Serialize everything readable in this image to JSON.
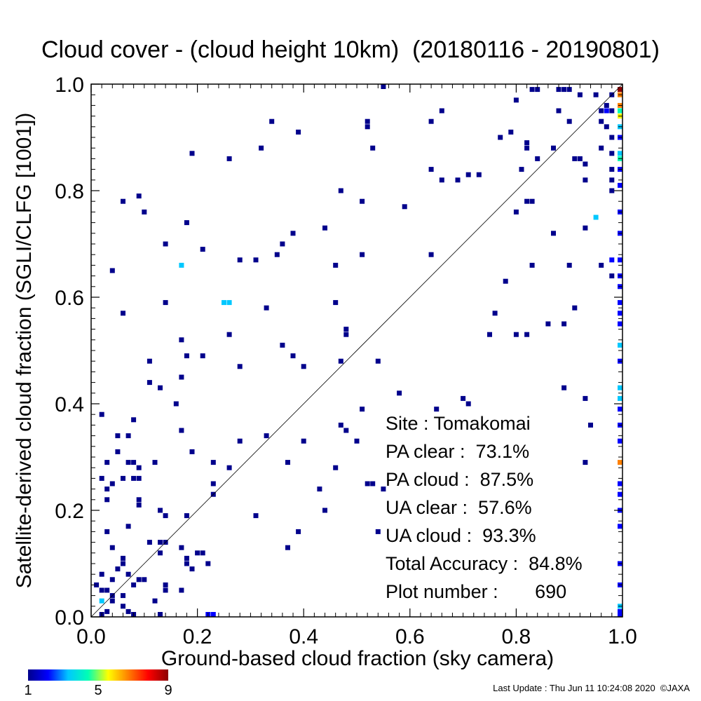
{
  "chart_data": {
    "type": "heatmap",
    "title": "Cloud cover - (cloud height 10km)  (20180116 - 20190801)",
    "xlabel": "Ground-based cloud fraction (sky camera)",
    "ylabel": "Satellite-derived cloud fraction (SGLI/CLFG [1001])",
    "xlim": [
      0,
      1
    ],
    "ylim": [
      0,
      1
    ],
    "xticks": [
      "0.0",
      "0.2",
      "0.4",
      "0.6",
      "0.8",
      "1.0"
    ],
    "yticks": [
      "0.0",
      "0.2",
      "0.4",
      "0.6",
      "0.8",
      "1.0"
    ],
    "reference_line": "y = x",
    "colorbar": {
      "min": 1,
      "max": 9,
      "ticks": [
        "1",
        "5",
        "9"
      ],
      "colors": [
        "#00008c",
        "#0000ff",
        "#00c8ff",
        "#00ffb4",
        "#ffff00",
        "#ff8000",
        "#ff0000",
        "#8c0000"
      ]
    },
    "points": [
      [
        0.55,
        1.0,
        1
      ],
      [
        0.83,
        0.99,
        1
      ],
      [
        0.84,
        0.99,
        1
      ],
      [
        0.88,
        0.99,
        1
      ],
      [
        0.89,
        0.99,
        1
      ],
      [
        0.9,
        0.99,
        1
      ],
      [
        0.92,
        0.98,
        1
      ],
      [
        0.95,
        0.98,
        1
      ],
      [
        0.98,
        0.98,
        1
      ],
      [
        1.0,
        0.99,
        9
      ],
      [
        1.0,
        0.98,
        7
      ],
      [
        0.8,
        0.97,
        1
      ],
      [
        0.97,
        0.96,
        1
      ],
      [
        1.0,
        0.96,
        7
      ],
      [
        0.66,
        0.95,
        1
      ],
      [
        0.88,
        0.95,
        1
      ],
      [
        0.96,
        0.95,
        1
      ],
      [
        0.97,
        0.95,
        2
      ],
      [
        0.98,
        0.95,
        1
      ],
      [
        1.0,
        0.95,
        4
      ],
      [
        1.0,
        0.94,
        5
      ],
      [
        0.34,
        0.93,
        1
      ],
      [
        0.52,
        0.93,
        1
      ],
      [
        0.64,
        0.93,
        1
      ],
      [
        0.9,
        0.93,
        1
      ],
      [
        0.96,
        0.93,
        1
      ],
      [
        0.97,
        0.92,
        1
      ],
      [
        1.0,
        0.92,
        3
      ],
      [
        0.52,
        0.92,
        1
      ],
      [
        0.39,
        0.91,
        1
      ],
      [
        0.79,
        0.91,
        1
      ],
      [
        0.77,
        0.9,
        1
      ],
      [
        0.98,
        0.9,
        1
      ],
      [
        1.0,
        0.9,
        2
      ],
      [
        0.82,
        0.89,
        1
      ],
      [
        0.82,
        0.88,
        1
      ],
      [
        0.96,
        0.88,
        1
      ],
      [
        0.87,
        0.88,
        1
      ],
      [
        0.32,
        0.88,
        1
      ],
      [
        0.53,
        0.88,
        1
      ],
      [
        0.19,
        0.87,
        1
      ],
      [
        0.98,
        0.87,
        1
      ],
      [
        1.0,
        0.87,
        3
      ],
      [
        0.26,
        0.86,
        1
      ],
      [
        0.91,
        0.86,
        1
      ],
      [
        0.92,
        0.86,
        1
      ],
      [
        0.84,
        0.86,
        1
      ],
      [
        1.0,
        0.86,
        4
      ],
      [
        0.93,
        0.85,
        1
      ],
      [
        0.81,
        0.84,
        1
      ],
      [
        0.64,
        0.84,
        1
      ],
      [
        0.98,
        0.84,
        1
      ],
      [
        1.0,
        0.84,
        2
      ],
      [
        0.73,
        0.83,
        1
      ],
      [
        0.66,
        0.82,
        1
      ],
      [
        0.69,
        0.82,
        1
      ],
      [
        0.71,
        0.83,
        1
      ],
      [
        0.93,
        0.82,
        1
      ],
      [
        0.98,
        0.82,
        1
      ],
      [
        1.0,
        0.81,
        2
      ],
      [
        0.47,
        0.8,
        1
      ],
      [
        0.98,
        0.8,
        1
      ],
      [
        0.09,
        0.79,
        1
      ],
      [
        0.06,
        0.78,
        1
      ],
      [
        0.51,
        0.78,
        1
      ],
      [
        0.82,
        0.78,
        1
      ],
      [
        0.83,
        0.78,
        1
      ],
      [
        0.59,
        0.77,
        1
      ],
      [
        0.1,
        0.76,
        1
      ],
      [
        0.8,
        0.76,
        1
      ],
      [
        0.95,
        0.75,
        3
      ],
      [
        1.0,
        0.76,
        2
      ],
      [
        0.18,
        0.74,
        1
      ],
      [
        0.44,
        0.73,
        1
      ],
      [
        0.93,
        0.73,
        1
      ],
      [
        0.38,
        0.72,
        1
      ],
      [
        0.87,
        0.72,
        1
      ],
      [
        1.0,
        0.72,
        2
      ],
      [
        0.14,
        0.7,
        1
      ],
      [
        0.36,
        0.7,
        1
      ],
      [
        0.21,
        0.69,
        1
      ],
      [
        0.35,
        0.68,
        1
      ],
      [
        0.51,
        0.68,
        1
      ],
      [
        0.64,
        0.68,
        1
      ],
      [
        0.28,
        0.67,
        1
      ],
      [
        0.31,
        0.67,
        1
      ],
      [
        0.98,
        0.67,
        2
      ],
      [
        1.0,
        0.67,
        2
      ],
      [
        0.17,
        0.66,
        3
      ],
      [
        0.46,
        0.66,
        1
      ],
      [
        0.83,
        0.66,
        1
      ],
      [
        0.9,
        0.66,
        1
      ],
      [
        0.96,
        0.66,
        1
      ],
      [
        0.04,
        0.65,
        1
      ],
      [
        0.98,
        0.64,
        1
      ],
      [
        1.0,
        0.64,
        2
      ],
      [
        0.78,
        0.63,
        1
      ],
      [
        1.0,
        0.62,
        2
      ],
      [
        0.14,
        0.59,
        1
      ],
      [
        0.25,
        0.59,
        3
      ],
      [
        0.26,
        0.59,
        3
      ],
      [
        0.46,
        0.59,
        1
      ],
      [
        1.0,
        0.59,
        2
      ],
      [
        0.33,
        0.58,
        1
      ],
      [
        0.06,
        0.57,
        1
      ],
      [
        0.76,
        0.57,
        1
      ],
      [
        0.91,
        0.58,
        1
      ],
      [
        1.0,
        0.57,
        2
      ],
      [
        0.89,
        0.55,
        1
      ],
      [
        0.48,
        0.54,
        1
      ],
      [
        1.0,
        0.55,
        2
      ],
      [
        0.26,
        0.53,
        1
      ],
      [
        0.48,
        0.53,
        1
      ],
      [
        0.75,
        0.53,
        1
      ],
      [
        0.8,
        0.53,
        1
      ],
      [
        0.82,
        0.53,
        1
      ],
      [
        0.86,
        0.55,
        1
      ],
      [
        0.17,
        0.52,
        1
      ],
      [
        0.36,
        0.51,
        1
      ],
      [
        1.0,
        0.51,
        3
      ],
      [
        0.18,
        0.49,
        1
      ],
      [
        0.21,
        0.49,
        1
      ],
      [
        0.38,
        0.49,
        1
      ],
      [
        0.47,
        0.48,
        1
      ],
      [
        0.54,
        0.48,
        1
      ],
      [
        0.11,
        0.48,
        1
      ],
      [
        0.28,
        0.47,
        1
      ],
      [
        0.4,
        0.47,
        1
      ],
      [
        1.0,
        0.48,
        2
      ],
      [
        0.17,
        0.45,
        1
      ],
      [
        0.11,
        0.44,
        1
      ],
      [
        0.13,
        0.43,
        1
      ],
      [
        0.89,
        0.43,
        1
      ],
      [
        0.58,
        0.42,
        1
      ],
      [
        0.7,
        0.41,
        1
      ],
      [
        0.71,
        0.4,
        1
      ],
      [
        0.93,
        0.41,
        1
      ],
      [
        1.0,
        0.43,
        3
      ],
      [
        1.0,
        0.41,
        3
      ],
      [
        0.16,
        0.4,
        1
      ],
      [
        0.51,
        0.39,
        1
      ],
      [
        0.65,
        0.39,
        1
      ],
      [
        0.02,
        0.38,
        1
      ],
      [
        0.08,
        0.37,
        1
      ],
      [
        1.0,
        0.39,
        2
      ],
      [
        0.47,
        0.36,
        1
      ],
      [
        0.48,
        0.35,
        1
      ],
      [
        0.17,
        0.35,
        1
      ],
      [
        0.94,
        0.36,
        1
      ],
      [
        1.0,
        0.36,
        2
      ],
      [
        0.05,
        0.34,
        1
      ],
      [
        0.07,
        0.34,
        1
      ],
      [
        0.33,
        0.34,
        1
      ],
      [
        0.5,
        0.33,
        1
      ],
      [
        0.4,
        0.33,
        1
      ],
      [
        0.28,
        0.33,
        1
      ],
      [
        1.0,
        0.33,
        2
      ],
      [
        0.05,
        0.31,
        1
      ],
      [
        0.19,
        0.31,
        1
      ],
      [
        0.07,
        0.29,
        1
      ],
      [
        0.03,
        0.29,
        1
      ],
      [
        0.08,
        0.29,
        1
      ],
      [
        0.12,
        0.29,
        1
      ],
      [
        0.23,
        0.29,
        1
      ],
      [
        0.37,
        0.29,
        1
      ],
      [
        0.93,
        0.29,
        1
      ],
      [
        1.0,
        0.29,
        7
      ],
      [
        0.09,
        0.28,
        1
      ],
      [
        0.26,
        0.28,
        1
      ],
      [
        0.46,
        0.28,
        1
      ],
      [
        0.02,
        0.26,
        1
      ],
      [
        0.06,
        0.26,
        1
      ],
      [
        0.08,
        0.26,
        1
      ],
      [
        0.09,
        0.26,
        1
      ],
      [
        0.04,
        0.25,
        1
      ],
      [
        0.23,
        0.25,
        1
      ],
      [
        0.52,
        0.25,
        1
      ],
      [
        0.53,
        0.25,
        1
      ],
      [
        0.55,
        0.24,
        1
      ],
      [
        0.03,
        0.24,
        1
      ],
      [
        0.43,
        0.24,
        1
      ],
      [
        0.23,
        0.23,
        1
      ],
      [
        1.0,
        0.25,
        2
      ],
      [
        1.0,
        0.23,
        2
      ],
      [
        0.09,
        0.22,
        1
      ],
      [
        0.03,
        0.22,
        1
      ],
      [
        0.09,
        0.21,
        1
      ],
      [
        0.13,
        0.2,
        1
      ],
      [
        0.44,
        0.2,
        1
      ],
      [
        1.0,
        0.2,
        2
      ],
      [
        0.14,
        0.19,
        1
      ],
      [
        0.18,
        0.19,
        1
      ],
      [
        0.31,
        0.19,
        1
      ],
      [
        0.07,
        0.17,
        1
      ],
      [
        0.03,
        0.16,
        1
      ],
      [
        0.39,
        0.16,
        1
      ],
      [
        0.54,
        0.16,
        1
      ],
      [
        1.0,
        0.17,
        2
      ],
      [
        0.11,
        0.14,
        1
      ],
      [
        0.13,
        0.14,
        1
      ],
      [
        0.14,
        0.14,
        1
      ],
      [
        0.37,
        0.13,
        1
      ],
      [
        0.04,
        0.13,
        1
      ],
      [
        0.17,
        0.13,
        1
      ],
      [
        0.2,
        0.12,
        1
      ],
      [
        0.13,
        0.12,
        1
      ],
      [
        0.21,
        0.12,
        1
      ],
      [
        0.06,
        0.11,
        1
      ],
      [
        0.06,
        0.1,
        1
      ],
      [
        0.18,
        0.11,
        1
      ],
      [
        0.18,
        0.1,
        1
      ],
      [
        0.22,
        0.1,
        1
      ],
      [
        1.0,
        0.1,
        2
      ],
      [
        0.05,
        0.09,
        1
      ],
      [
        0.19,
        0.09,
        1
      ],
      [
        0.07,
        0.08,
        1
      ],
      [
        0.02,
        0.08,
        1
      ],
      [
        0.04,
        0.07,
        1
      ],
      [
        0.09,
        0.07,
        1
      ],
      [
        0.1,
        0.07,
        1
      ],
      [
        0.08,
        0.06,
        1
      ],
      [
        0.01,
        0.06,
        1
      ],
      [
        0.14,
        0.06,
        1
      ],
      [
        1.0,
        0.06,
        2
      ],
      [
        0.02,
        0.05,
        1
      ],
      [
        0.03,
        0.05,
        1
      ],
      [
        0.04,
        0.04,
        1
      ],
      [
        0.14,
        0.05,
        1
      ],
      [
        0.17,
        0.05,
        1
      ],
      [
        0.06,
        0.04,
        1
      ],
      [
        0.02,
        0.03,
        3
      ],
      [
        0.04,
        0.03,
        1
      ],
      [
        0.12,
        0.03,
        1
      ],
      [
        0.06,
        0.02,
        1
      ],
      [
        0.03,
        0.01,
        1
      ],
      [
        0.07,
        0.01,
        1
      ],
      [
        0.02,
        0.0,
        1
      ],
      [
        0.08,
        0.0,
        1
      ],
      [
        0.13,
        0.0,
        1
      ],
      [
        0.22,
        0.0,
        2
      ],
      [
        0.23,
        0.0,
        2
      ],
      [
        1.0,
        0.02,
        3
      ],
      [
        1.0,
        0.01,
        2
      ],
      [
        1.0,
        0.0,
        2
      ]
    ]
  },
  "stats": {
    "site": "Site : Tomakomai",
    "pa_clear": "PA clear :  73.1%",
    "pa_cloud": "PA cloud :  87.5%",
    "ua_clear": "UA clear :  57.6%",
    "ua_cloud": "UA cloud :  93.3%",
    "total": "Total Accuracy :  84.8%",
    "plot_number": "Plot number :       690"
  },
  "footer": "Last Update : Thu Jun 11 10:24:08 2020  ©JAXA"
}
